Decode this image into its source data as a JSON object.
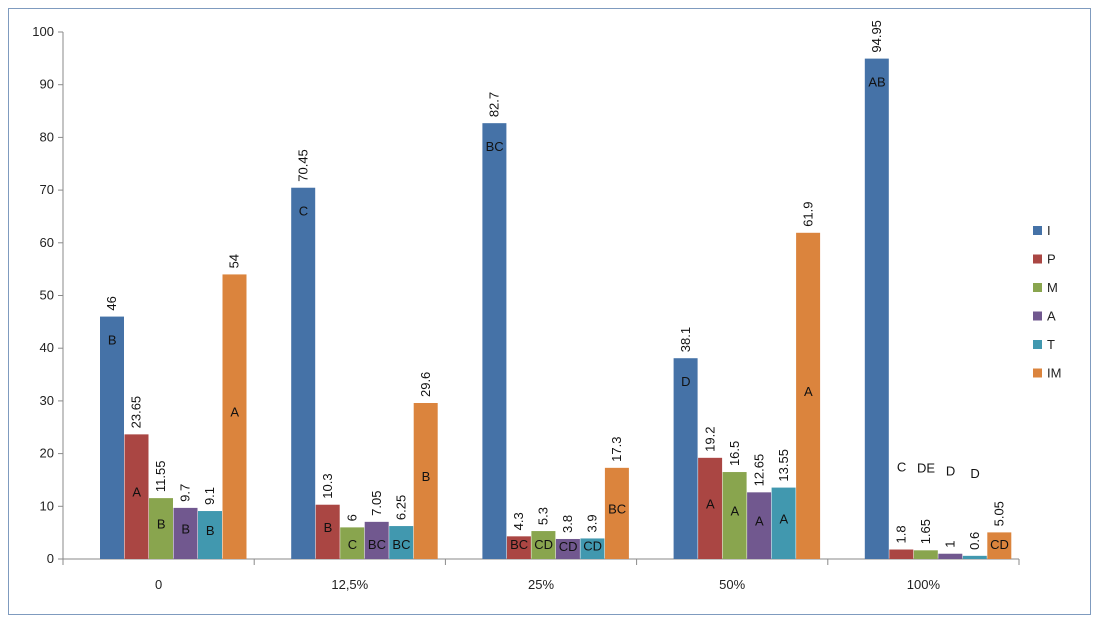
{
  "chart_data": {
    "type": "bar",
    "title": "",
    "xlabel": "",
    "ylabel": "",
    "ylim": [
      0,
      100
    ],
    "yticks": [
      0,
      10,
      20,
      30,
      40,
      50,
      60,
      70,
      80,
      90,
      100
    ],
    "grid": false,
    "legend_position": "right",
    "categories": [
      "0",
      "12,5%",
      "25%",
      "50%",
      "100%"
    ],
    "series": [
      {
        "name": "I",
        "color": "#4572a7",
        "values": [
          46,
          70.45,
          82.7,
          38.1,
          94.95
        ],
        "value_labels": [
          "46",
          "70.45",
          "82.7",
          "38.1",
          "94.95"
        ],
        "group_labels": [
          "B",
          "C",
          "BC",
          "D",
          "AB"
        ]
      },
      {
        "name": "P",
        "color": "#aa4643",
        "values": [
          23.65,
          10.3,
          4.3,
          19.2,
          1.8
        ],
        "value_labels": [
          "23.65",
          "10.3",
          "4.3",
          "19.2",
          "1.8"
        ],
        "group_labels": [
          "A",
          "B",
          "BC",
          "A",
          "C"
        ]
      },
      {
        "name": "M",
        "color": "#89a54e",
        "values": [
          11.55,
          6,
          5.3,
          16.5,
          1.65
        ],
        "value_labels": [
          "11.55",
          "6",
          "5.3",
          "16.5",
          "1.65"
        ],
        "group_labels": [
          "B",
          "C",
          "CD",
          "A",
          "DE"
        ]
      },
      {
        "name": "A",
        "color": "#71588f",
        "values": [
          9.7,
          7.05,
          3.8,
          12.65,
          1
        ],
        "value_labels": [
          "9.7",
          "7.05",
          "3.8",
          "12.65",
          "1"
        ],
        "group_labels": [
          "B",
          "BC",
          "CD",
          "A",
          "D"
        ]
      },
      {
        "name": "T",
        "color": "#4198af",
        "values": [
          9.1,
          6.25,
          3.9,
          13.55,
          0.6
        ],
        "value_labels": [
          "9.1",
          "6.25",
          "3.9",
          "13.55",
          "0.6"
        ],
        "group_labels": [
          "B",
          "BC",
          "CD",
          "A",
          "D"
        ]
      },
      {
        "name": "IM",
        "color": "#db843d",
        "values": [
          54,
          29.6,
          17.3,
          61.9,
          5.05
        ],
        "value_labels": [
          "54",
          "29.6",
          "17.3",
          "61.9",
          "5.05"
        ],
        "group_labels": [
          "A",
          "B",
          "BC",
          "A",
          "CD"
        ]
      }
    ]
  }
}
